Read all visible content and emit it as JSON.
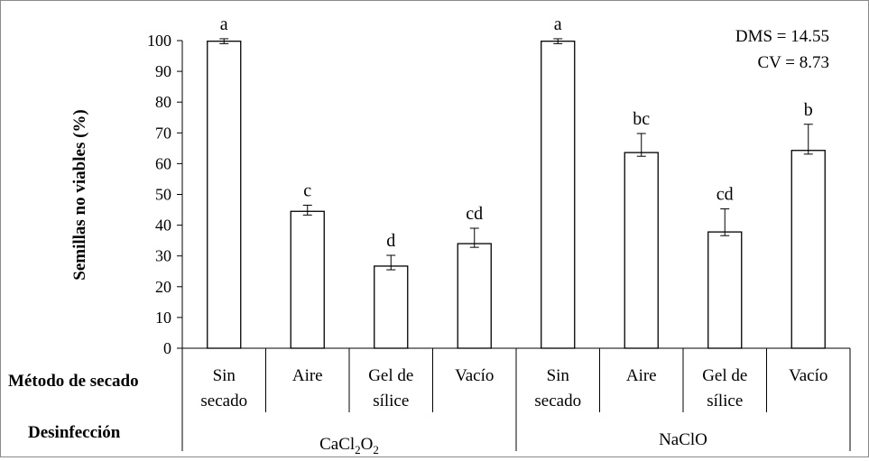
{
  "chart_data": {
    "type": "bar",
    "ylabel": "Semillas no viables (%)",
    "ylim": [
      0,
      100
    ],
    "yticks": [
      0,
      10,
      20,
      30,
      40,
      50,
      60,
      70,
      80,
      90,
      100
    ],
    "grid": false,
    "legend": "none",
    "bar_color": "#ffffff",
    "stroke_color": "#000000",
    "stats": [
      "DMS = 14.55",
      "CV = 8.73"
    ],
    "row_labels": {
      "method": "Método de secado",
      "disinfection": "Desinfección"
    },
    "groups": [
      {
        "name": "CaCl",
        "name_sub": "2",
        "name_mid": "O",
        "name_sub2": "2",
        "categories": [
          {
            "line1": "Sin",
            "line2": "secado",
            "value": 99.8,
            "error": 0.8,
            "letter": "a"
          },
          {
            "line1": "Aire",
            "line2": "",
            "value": 44.5,
            "error": 2.0,
            "letter": "c"
          },
          {
            "line1": "Gel de",
            "line2": "sílice",
            "value": 26.7,
            "error": 3.5,
            "letter": "d"
          },
          {
            "line1": "Vacío",
            "line2": "",
            "value": 34.0,
            "error": 5.0,
            "letter": "cd"
          }
        ]
      },
      {
        "name": "NaClO",
        "categories": [
          {
            "line1": "Sin",
            "line2": "secado",
            "value": 99.8,
            "error": 0.8,
            "letter": "a"
          },
          {
            "line1": "Aire",
            "line2": "",
            "value": 63.6,
            "error": 6.2,
            "letter": "bc"
          },
          {
            "line1": "Gel de",
            "line2": "sílice",
            "value": 37.8,
            "error": 7.5,
            "letter": "cd"
          },
          {
            "line1": "Vacío",
            "line2": "",
            "value": 64.3,
            "error": 8.5,
            "letter": "b"
          }
        ]
      }
    ]
  }
}
